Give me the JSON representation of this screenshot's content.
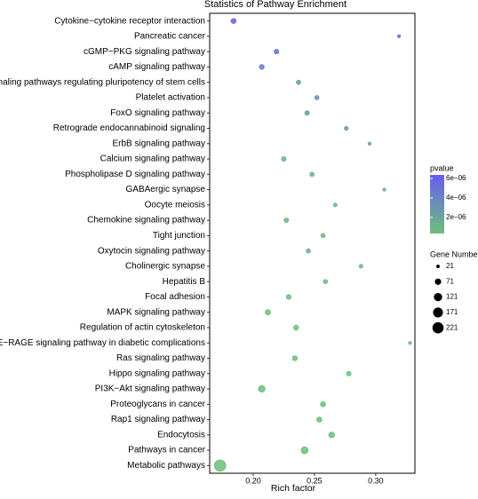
{
  "chart_data": {
    "type": "scatter",
    "title": "Statistics of Pathway Enrichment",
    "x_label": "Rich factor",
    "categories": [
      "Cytokine−cytokine receptor interaction",
      "Pancreatic cancer",
      "cGMP−PKG signaling pathway",
      "cAMP signaling pathway",
      "Signaling pathways regulating pluripotency of stem cells",
      "Platelet activation",
      "FoxO signaling pathway",
      "Retrograde endocannabinoid signaling",
      "ErbB signaling pathway",
      "Calcium signaling pathway",
      "Phospholipase D signaling pathway",
      "GABAergic synapse",
      "Oocyte meiosis",
      "Chemokine signaling pathway",
      "Tight junction",
      "Oxytocin signaling pathway",
      "Cholinergic synapse",
      "Hepatitis B",
      "Focal adhesion",
      "MAPK signaling pathway",
      "Regulation of actin cytoskeleton",
      "AGE−RAGE signaling pathway in diabetic complications",
      "Ras signaling pathway",
      "Hippo signaling pathway",
      "PI3K−Akt signaling pathway",
      "Proteoglycans in cancer",
      "Rap1 signaling pathway",
      "Endocytosis",
      "Pathways in cancer",
      "Metabolic pathways"
    ],
    "x": [
      0.184,
      0.319,
      0.219,
      0.207,
      0.237,
      0.252,
      0.244,
      0.276,
      0.295,
      0.225,
      0.248,
      0.307,
      0.267,
      0.227,
      0.257,
      0.245,
      0.288,
      0.259,
      0.229,
      0.212,
      0.235,
      0.328,
      0.234,
      0.278,
      0.207,
      0.257,
      0.254,
      0.264,
      0.242,
      0.173
    ],
    "gene_number": [
      40,
      12,
      35,
      40,
      30,
      30,
      32,
      25,
      15,
      35,
      30,
      15,
      22,
      33,
      30,
      30,
      22,
      30,
      38,
      45,
      40,
      15,
      40,
      35,
      72,
      42,
      42,
      55,
      80,
      221
    ],
    "pvalue": [
      6e-06,
      5.8e-06,
      5e-06,
      4e-06,
      2.2e-06,
      3e-06,
      2.5e-06,
      2.2e-06,
      2e-06,
      1e-06,
      1.2e-06,
      1e-06,
      8e-07,
      8e-07,
      7e-07,
      1e-06,
      9e-07,
      6e-07,
      5e-07,
      5e-07,
      5e-07,
      6e-07,
      5e-07,
      5e-07,
      5e-07,
      5e-07,
      4e-07,
      4e-07,
      4e-07,
      4e-07
    ],
    "xlim": [
      0.1645,
      0.332
    ],
    "xticks": [
      {
        "value": 0.2,
        "label": "0.20"
      },
      {
        "value": 0.25,
        "label": "0.25"
      },
      {
        "value": 0.3,
        "label": "0.30"
      }
    ],
    "color_legend_title": "pvalue",
    "color_lim": [
      3.6e-07,
      6.36e-06
    ],
    "color_ticks": [
      {
        "value": 6e-06,
        "label": "6e−06"
      },
      {
        "value": 4e-06,
        "label": "4e−06"
      },
      {
        "value": 2e-06,
        "label": "2e−06"
      }
    ],
    "low_color": "#6cc07a",
    "high_color": "#6a5cf0",
    "size_legend_title": "Gene Numbe",
    "size_legend": [
      21,
      71,
      121,
      171,
      221
    ]
  }
}
